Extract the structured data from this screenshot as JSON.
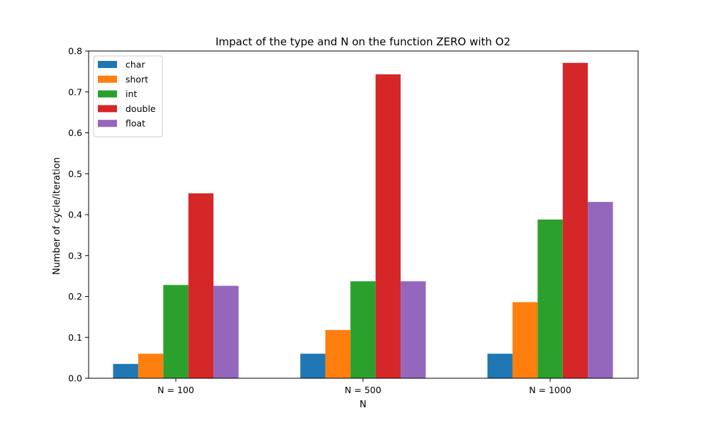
{
  "chart_data": {
    "type": "bar",
    "title": "Impact of the type and N on the function ZERO with O2",
    "xlabel": "N",
    "ylabel": "Number of cycle/iteration",
    "categories": [
      "N = 100",
      "N = 500",
      "N = 1000"
    ],
    "ylim": [
      0,
      0.8
    ],
    "yticks": [
      "0.0",
      "0.1",
      "0.2",
      "0.3",
      "0.4",
      "0.5",
      "0.6",
      "0.7",
      "0.8"
    ],
    "grid": false,
    "legend_position": "top-left",
    "series": [
      {
        "name": "char",
        "color": "#1f77b4",
        "values": [
          0.035,
          0.06,
          0.06
        ]
      },
      {
        "name": "short",
        "color": "#ff7f0e",
        "values": [
          0.06,
          0.118,
          0.186
        ]
      },
      {
        "name": "int",
        "color": "#2ca02c",
        "values": [
          0.228,
          0.237,
          0.388
        ]
      },
      {
        "name": "double",
        "color": "#d62728",
        "values": [
          0.452,
          0.743,
          0.771
        ]
      },
      {
        "name": "float",
        "color": "#9467bd",
        "values": [
          0.226,
          0.237,
          0.431
        ]
      }
    ]
  }
}
